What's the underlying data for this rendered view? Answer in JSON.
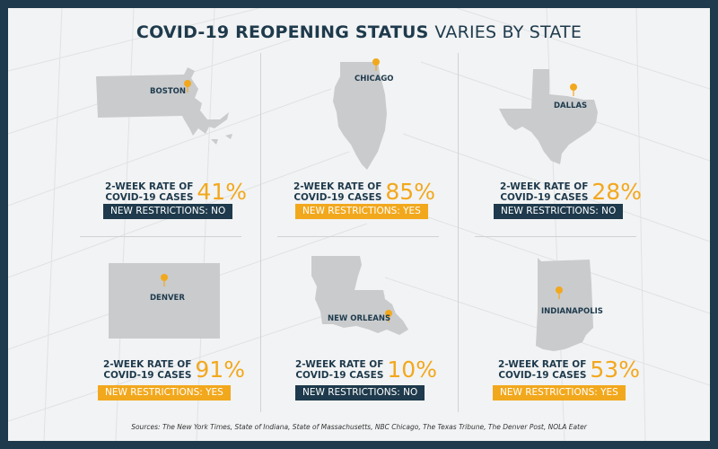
{
  "title": {
    "bold": "COVID-19 REOPENING STATUS",
    "light": "VARIES BY STATE"
  },
  "colors": {
    "navy": "#1e3a4c",
    "gold": "#f2a81d",
    "state_gray": "#c9cbcd"
  },
  "rate_label_line1": "2-WEEK RATE OF",
  "rate_label_line2": "COVID-19 CASES",
  "cities": [
    {
      "city": "BOSTON",
      "rate": "41%",
      "restriction": "NEW RESTRICTIONS: NO",
      "restricted": false
    },
    {
      "city": "CHICAGO",
      "rate": "85%",
      "restriction": "NEW RESTRICTIONS: YES",
      "restricted": true
    },
    {
      "city": "DALLAS",
      "rate": "28%",
      "restriction": "NEW RESTRICTIONS: NO",
      "restricted": false
    },
    {
      "city": "DENVER",
      "rate": "91%",
      "restriction": "NEW RESTRICTIONS: YES",
      "restricted": true
    },
    {
      "city": "NEW ORLEANS",
      "rate": "10%",
      "restriction": "NEW RESTRICTIONS: NO",
      "restricted": false
    },
    {
      "city": "INDIANAPOLIS",
      "rate": "53%",
      "restriction": "NEW RESTRICTIONS: YES",
      "restricted": true
    }
  ],
  "sources": "Sources: The New York Times, State of Indiana, State of Massachusetts, NBC Chicago, The Texas Tribune, The Denver Post, NOLA Eater"
}
